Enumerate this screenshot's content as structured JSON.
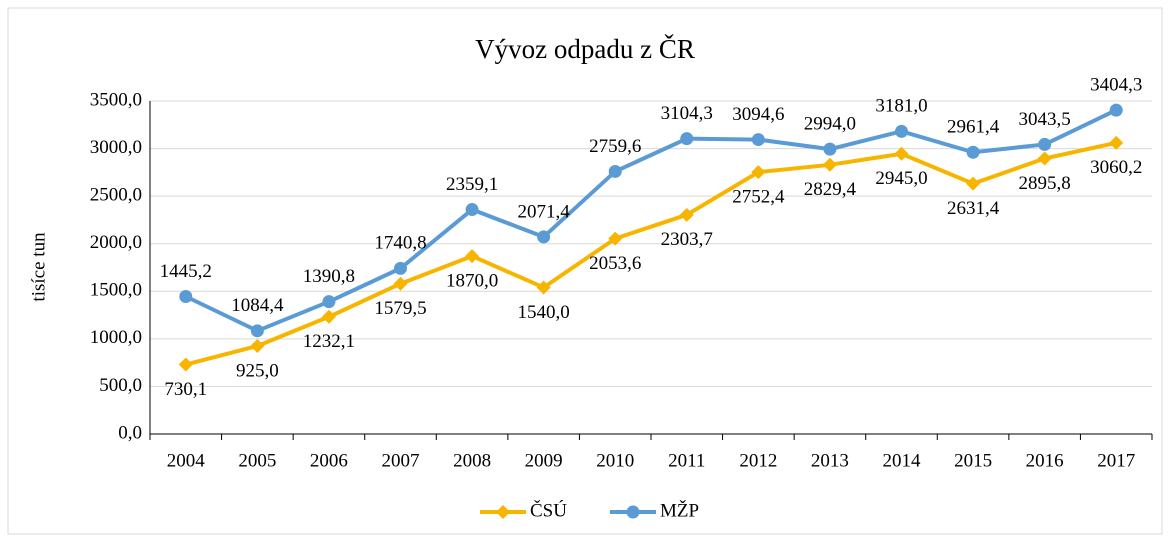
{
  "chart_data": {
    "type": "line",
    "title": "Vývoz odpadu z ČR",
    "y_label": "tisíce tun",
    "categories": [
      "2004",
      "2005",
      "2006",
      "2007",
      "2008",
      "2009",
      "2010",
      "2011",
      "2012",
      "2013",
      "2014",
      "2015",
      "2016",
      "2017"
    ],
    "series": [
      {
        "name": "ČSÚ",
        "color": "#f7b500",
        "marker": "diamond",
        "values": [
          730.1,
          925.0,
          1232.1,
          1579.5,
          1870.0,
          1540.0,
          2053.6,
          2303.7,
          2752.4,
          2829.4,
          2945.0,
          2631.4,
          2895.8,
          3060.2
        ],
        "value_labels": [
          "730,1",
          "925,0",
          "1232,1",
          "1579,5",
          "1870,0",
          "1540,0",
          "2053,6",
          "2303,7",
          "2752,4",
          "2829,4",
          "2945,0",
          "2631,4",
          "2895,8",
          "3060,2"
        ]
      },
      {
        "name": "MŽP",
        "color": "#5b9bd5",
        "marker": "circle",
        "values": [
          1445.2,
          1084.4,
          1390.8,
          1740.8,
          2359.1,
          2071.4,
          2759.6,
          3104.3,
          3094.6,
          2994.0,
          3181.0,
          2961.4,
          3043.5,
          3404.3
        ],
        "value_labels": [
          "1445,2",
          "1084,4",
          "1390,8",
          "1740,8",
          "2359,1",
          "2071,4",
          "2759,6",
          "3104,3",
          "3094,6",
          "2994,0",
          "3181,0",
          "2961,4",
          "3043,5",
          "3404,3"
        ]
      }
    ],
    "ylim": [
      0,
      3500
    ],
    "yticks": [
      {
        "value": 0,
        "label": "0,0"
      },
      {
        "value": 500,
        "label": "500,0"
      },
      {
        "value": 1000,
        "label": "1000,0"
      },
      {
        "value": 1500,
        "label": "1500,0"
      },
      {
        "value": 2000,
        "label": "2000,0"
      },
      {
        "value": 2500,
        "label": "2500,0"
      },
      {
        "value": 3000,
        "label": "3000,0"
      },
      {
        "value": 3500,
        "label": "3500,0"
      }
    ],
    "grid": true,
    "legend": "bottom"
  }
}
